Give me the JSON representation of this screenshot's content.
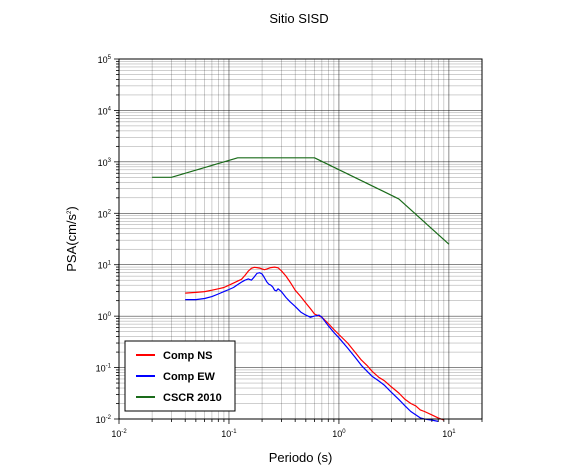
{
  "chart_data": {
    "type": "line",
    "title": "Sitio SISD",
    "xlabel": "Periodo (s)",
    "ylabel_main": "PSA(cm/s",
    "ylabel_sup": "2",
    "ylabel_close": ")",
    "xscale": "log",
    "yscale": "log",
    "xlim": [
      0.01,
      20
    ],
    "ylim": [
      0.01,
      100000
    ],
    "x_ticks": [
      {
        "value": 0.01,
        "base": "10",
        "exp": "-2"
      },
      {
        "value": 0.1,
        "base": "10",
        "exp": "-1"
      },
      {
        "value": 1,
        "base": "10",
        "exp": "0"
      },
      {
        "value": 10,
        "base": "10",
        "exp": "1"
      }
    ],
    "y_ticks": [
      {
        "value": 0.01,
        "base": "10",
        "exp": "-2"
      },
      {
        "value": 0.1,
        "base": "10",
        "exp": "-1"
      },
      {
        "value": 1,
        "base": "10",
        "exp": "0"
      },
      {
        "value": 10,
        "base": "10",
        "exp": "1"
      },
      {
        "value": 100,
        "base": "10",
        "exp": "2"
      },
      {
        "value": 1000,
        "base": "10",
        "exp": "3"
      },
      {
        "value": 10000,
        "base": "10",
        "exp": "4"
      },
      {
        "value": 100000,
        "base": "10",
        "exp": "5"
      }
    ],
    "grid": true,
    "legend_position": "bottom-left",
    "series": [
      {
        "name": "Comp NS",
        "color": "#ff0000",
        "points": [
          [
            0.04,
            2.8
          ],
          [
            0.05,
            2.9
          ],
          [
            0.06,
            3.0
          ],
          [
            0.07,
            3.2
          ],
          [
            0.08,
            3.4
          ],
          [
            0.09,
            3.6
          ],
          [
            0.1,
            4.0
          ],
          [
            0.11,
            4.4
          ],
          [
            0.12,
            4.8
          ],
          [
            0.13,
            5.2
          ],
          [
            0.14,
            6.2
          ],
          [
            0.15,
            7.5
          ],
          [
            0.16,
            8.5
          ],
          [
            0.17,
            8.9
          ],
          [
            0.18,
            8.8
          ],
          [
            0.19,
            8.6
          ],
          [
            0.2,
            8.3
          ],
          [
            0.21,
            8.0
          ],
          [
            0.22,
            8.2
          ],
          [
            0.24,
            8.8
          ],
          [
            0.26,
            9.0
          ],
          [
            0.28,
            8.7
          ],
          [
            0.3,
            7.6
          ],
          [
            0.33,
            6.0
          ],
          [
            0.36,
            4.6
          ],
          [
            0.4,
            3.2
          ],
          [
            0.45,
            2.4
          ],
          [
            0.5,
            1.8
          ],
          [
            0.55,
            1.4
          ],
          [
            0.6,
            1.1
          ],
          [
            0.66,
            1.0
          ],
          [
            0.7,
            0.95
          ],
          [
            0.8,
            0.72
          ],
          [
            0.9,
            0.55
          ],
          [
            1.0,
            0.44
          ],
          [
            1.2,
            0.3
          ],
          [
            1.4,
            0.2
          ],
          [
            1.6,
            0.14
          ],
          [
            1.8,
            0.11
          ],
          [
            2.0,
            0.085
          ],
          [
            2.3,
            0.065
          ],
          [
            2.6,
            0.055
          ],
          [
            3.0,
            0.042
          ],
          [
            3.5,
            0.032
          ],
          [
            4.0,
            0.024
          ],
          [
            4.5,
            0.02
          ],
          [
            5.0,
            0.018
          ],
          [
            5.5,
            0.015
          ],
          [
            6.0,
            0.014
          ],
          [
            7.0,
            0.012
          ],
          [
            8.0,
            0.0105
          ],
          [
            9.0,
            0.0095
          ]
        ]
      },
      {
        "name": "Comp EW",
        "color": "#0000ff",
        "points": [
          [
            0.04,
            2.1
          ],
          [
            0.05,
            2.1
          ],
          [
            0.06,
            2.2
          ],
          [
            0.07,
            2.4
          ],
          [
            0.08,
            2.7
          ],
          [
            0.09,
            3.0
          ],
          [
            0.1,
            3.3
          ],
          [
            0.11,
            3.6
          ],
          [
            0.12,
            4.1
          ],
          [
            0.13,
            4.6
          ],
          [
            0.14,
            5.0
          ],
          [
            0.15,
            5.3
          ],
          [
            0.16,
            5.0
          ],
          [
            0.17,
            5.8
          ],
          [
            0.18,
            6.8
          ],
          [
            0.19,
            7.0
          ],
          [
            0.2,
            6.6
          ],
          [
            0.21,
            5.6
          ],
          [
            0.22,
            4.7
          ],
          [
            0.23,
            4.2
          ],
          [
            0.24,
            4.0
          ],
          [
            0.25,
            3.7
          ],
          [
            0.26,
            3.2
          ],
          [
            0.27,
            3.1
          ],
          [
            0.28,
            3.4
          ],
          [
            0.3,
            3.0
          ],
          [
            0.33,
            2.3
          ],
          [
            0.36,
            1.9
          ],
          [
            0.4,
            1.55
          ],
          [
            0.45,
            1.2
          ],
          [
            0.5,
            1.05
          ],
          [
            0.55,
            0.95
          ],
          [
            0.6,
            1.0
          ],
          [
            0.66,
            1.05
          ],
          [
            0.7,
            0.95
          ],
          [
            0.8,
            0.65
          ],
          [
            0.9,
            0.48
          ],
          [
            1.0,
            0.38
          ],
          [
            1.2,
            0.24
          ],
          [
            1.4,
            0.16
          ],
          [
            1.6,
            0.11
          ],
          [
            1.8,
            0.085
          ],
          [
            2.0,
            0.068
          ],
          [
            2.3,
            0.055
          ],
          [
            2.6,
            0.045
          ],
          [
            3.0,
            0.033
          ],
          [
            3.5,
            0.024
          ],
          [
            4.0,
            0.018
          ],
          [
            4.5,
            0.014
          ],
          [
            5.0,
            0.012
          ],
          [
            5.5,
            0.0105
          ],
          [
            6.0,
            0.01
          ],
          [
            7.0,
            0.0095
          ],
          [
            8.0,
            0.009
          ]
        ]
      },
      {
        "name": "CSCR 2010",
        "color": "#1a6b1a",
        "points": [
          [
            0.02,
            500
          ],
          [
            0.03,
            500
          ],
          [
            0.12,
            1200
          ],
          [
            0.6,
            1200
          ],
          [
            3.5,
            190
          ],
          [
            10,
            25
          ]
        ]
      }
    ]
  }
}
